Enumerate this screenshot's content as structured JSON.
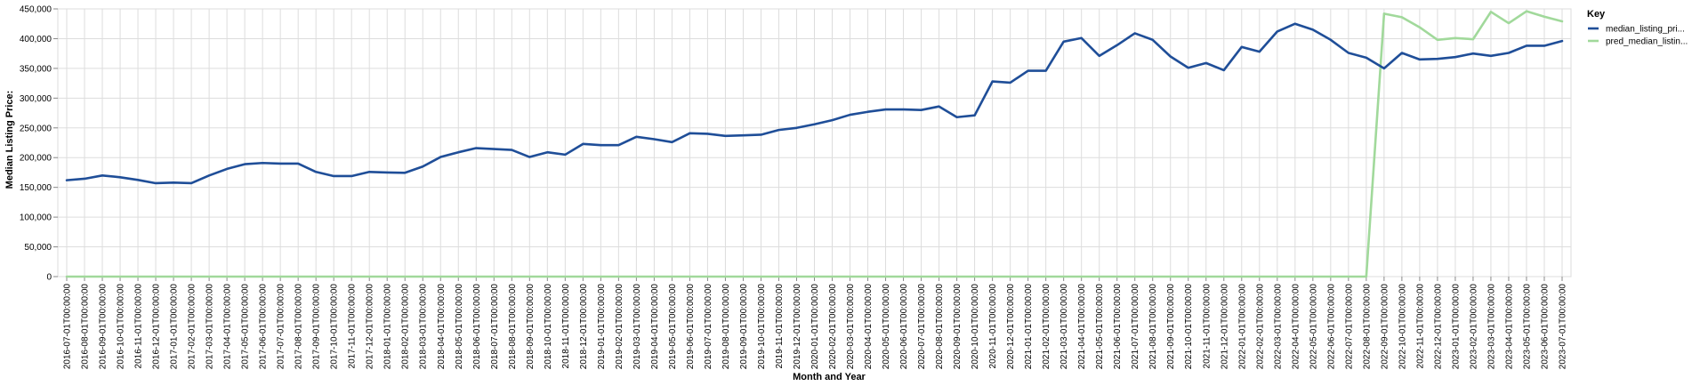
{
  "chart_data": {
    "type": "line",
    "xlabel": "Month and Year",
    "ylabel": "Median Listing Price:",
    "ylim": [
      0,
      450000
    ],
    "yticks": [
      0,
      50000,
      100000,
      150000,
      200000,
      250000,
      300000,
      350000,
      400000,
      450000
    ],
    "ytick_labels": [
      "0",
      "50,000",
      "100,000",
      "150,000",
      "200,000",
      "250,000",
      "300,000",
      "350,000",
      "400,000",
      "450,000"
    ],
    "grid": true,
    "legend": {
      "title": "Key",
      "placement": "right"
    },
    "x": [
      "2016-07-01T00:00:00",
      "2016-08-01T00:00:00",
      "2016-09-01T00:00:00",
      "2016-10-01T00:00:00",
      "2016-11-01T00:00:00",
      "2016-12-01T00:00:00",
      "2017-01-01T00:00:00",
      "2017-02-01T00:00:00",
      "2017-03-01T00:00:00",
      "2017-04-01T00:00:00",
      "2017-05-01T00:00:00",
      "2017-06-01T00:00:00",
      "2017-07-01T00:00:00",
      "2017-08-01T00:00:00",
      "2017-09-01T00:00:00",
      "2017-10-01T00:00:00",
      "2017-11-01T00:00:00",
      "2017-12-01T00:00:00",
      "2018-01-01T00:00:00",
      "2018-02-01T00:00:00",
      "2018-03-01T00:00:00",
      "2018-04-01T00:00:00",
      "2018-05-01T00:00:00",
      "2018-06-01T00:00:00",
      "2018-07-01T00:00:00",
      "2018-08-01T00:00:00",
      "2018-09-01T00:00:00",
      "2018-10-01T00:00:00",
      "2018-11-01T00:00:00",
      "2018-12-01T00:00:00",
      "2019-01-01T00:00:00",
      "2019-02-01T00:00:00",
      "2019-03-01T00:00:00",
      "2019-04-01T00:00:00",
      "2019-05-01T00:00:00",
      "2019-06-01T00:00:00",
      "2019-07-01T00:00:00",
      "2019-08-01T00:00:00",
      "2019-09-01T00:00:00",
      "2019-10-01T00:00:00",
      "2019-11-01T00:00:00",
      "2019-12-01T00:00:00",
      "2020-01-01T00:00:00",
      "2020-02-01T00:00:00",
      "2020-03-01T00:00:00",
      "2020-04-01T00:00:00",
      "2020-05-01T00:00:00",
      "2020-06-01T00:00:00",
      "2020-07-01T00:00:00",
      "2020-08-01T00:00:00",
      "2020-09-01T00:00:00",
      "2020-10-01T00:00:00",
      "2020-11-01T00:00:00",
      "2020-12-01T00:00:00",
      "2021-01-01T00:00:00",
      "2021-02-01T00:00:00",
      "2021-03-01T00:00:00",
      "2021-04-01T00:00:00",
      "2021-05-01T00:00:00",
      "2021-06-01T00:00:00",
      "2021-07-01T00:00:00",
      "2021-08-01T00:00:00",
      "2021-09-01T00:00:00",
      "2021-10-01T00:00:00",
      "2021-11-01T00:00:00",
      "2021-12-01T00:00:00",
      "2022-01-01T00:00:00",
      "2022-02-01T00:00:00",
      "2022-03-01T00:00:00",
      "2022-04-01T00:00:00",
      "2022-05-01T00:00:00",
      "2022-06-01T00:00:00",
      "2022-07-01T00:00:00",
      "2022-08-01T00:00:00",
      "2022-09-01T00:00:00",
      "2022-10-01T00:00:00",
      "2022-11-01T00:00:00",
      "2022-12-01T00:00:00",
      "2023-01-01T00:00:00",
      "2023-02-01T00:00:00",
      "2023-03-01T00:00:00",
      "2023-04-01T00:00:00",
      "2023-05-01T00:00:00",
      "2023-06-01T00:00:00",
      "2023-07-01T00:00:00"
    ],
    "series": [
      {
        "name": "median_listing_pri...",
        "color": "#1f4e98",
        "values": [
          162000,
          164500,
          170000,
          167000,
          162500,
          157000,
          158000,
          157000,
          170000,
          181000,
          189000,
          191000,
          190000,
          190000,
          176000,
          169000,
          169000,
          176000,
          175000,
          174500,
          185000,
          201000,
          209000,
          216000,
          214500,
          213000,
          201000,
          209000,
          205000,
          223000,
          221000,
          221000,
          235000,
          231000,
          226000,
          241000,
          240000,
          236500,
          237500,
          238500,
          246500,
          250000,
          256000,
          263000,
          272000,
          277000,
          281000,
          281000,
          280000,
          286000,
          268000,
          271000,
          328000,
          326000,
          346000,
          346000,
          395000,
          401000,
          371000,
          389000,
          409000,
          398000,
          370000,
          351000,
          359000,
          347000,
          386000,
          378000,
          412000,
          425000,
          415000,
          398000,
          376000,
          368000,
          350000,
          376000,
          365000,
          366000,
          369000,
          375000,
          371000,
          376000,
          388000,
          388000,
          396000
        ]
      },
      {
        "name": "pred_median_listin...",
        "color": "#a1d99b",
        "values": [
          0,
          0,
          0,
          0,
          0,
          0,
          0,
          0,
          0,
          0,
          0,
          0,
          0,
          0,
          0,
          0,
          0,
          0,
          0,
          0,
          0,
          0,
          0,
          0,
          0,
          0,
          0,
          0,
          0,
          0,
          0,
          0,
          0,
          0,
          0,
          0,
          0,
          0,
          0,
          0,
          0,
          0,
          0,
          0,
          0,
          0,
          0,
          0,
          0,
          0,
          0,
          0,
          0,
          0,
          0,
          0,
          0,
          0,
          0,
          0,
          0,
          0,
          0,
          0,
          0,
          0,
          0,
          0,
          0,
          0,
          0,
          0,
          0,
          0,
          442000,
          436000,
          419000,
          398000,
          401000,
          399000,
          445000,
          426000,
          446000,
          437000,
          429000
        ]
      }
    ]
  }
}
